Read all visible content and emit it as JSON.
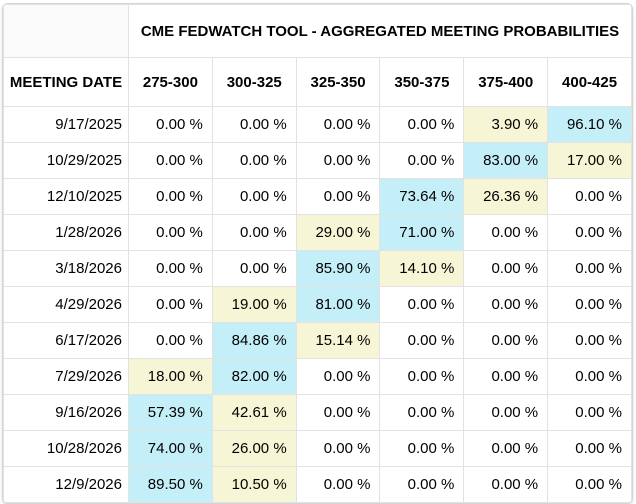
{
  "colors": {
    "highlight_blue": "#c5eff8",
    "highlight_yellow": "#f6f6d6",
    "grid_border": "#e2e2e2",
    "outer_border": "#d4d4d4"
  },
  "chart_data": {
    "type": "table",
    "title": "CME FEDWATCH TOOL - AGGREGATED MEETING PROBABILITIES",
    "date_column_header": "MEETING DATE",
    "rate_columns": [
      "275-300",
      "300-325",
      "325-350",
      "350-375",
      "375-400",
      "400-425"
    ],
    "legend_note_highlights": {
      "blue": "highest probability in row",
      "yellow": "second probability in row"
    },
    "rows": [
      {
        "date": "9/17/2025",
        "values": [
          0.0,
          0.0,
          0.0,
          0.0,
          3.9,
          96.1
        ],
        "cells": [
          "0.00 %",
          "0.00 %",
          "0.00 %",
          "0.00 %",
          "3.90 %",
          "96.10 %"
        ],
        "highlights": [
          "none",
          "none",
          "none",
          "none",
          "yellow",
          "blue"
        ]
      },
      {
        "date": "10/29/2025",
        "values": [
          0.0,
          0.0,
          0.0,
          0.0,
          83.0,
          17.0
        ],
        "cells": [
          "0.00 %",
          "0.00 %",
          "0.00 %",
          "0.00 %",
          "83.00 %",
          "17.00 %"
        ],
        "highlights": [
          "none",
          "none",
          "none",
          "none",
          "blue",
          "yellow"
        ]
      },
      {
        "date": "12/10/2025",
        "values": [
          0.0,
          0.0,
          0.0,
          73.64,
          26.36,
          0.0
        ],
        "cells": [
          "0.00 %",
          "0.00 %",
          "0.00 %",
          "73.64 %",
          "26.36 %",
          "0.00 %"
        ],
        "highlights": [
          "none",
          "none",
          "none",
          "blue",
          "yellow",
          "none"
        ]
      },
      {
        "date": "1/28/2026",
        "values": [
          0.0,
          0.0,
          29.0,
          71.0,
          0.0,
          0.0
        ],
        "cells": [
          "0.00 %",
          "0.00 %",
          "29.00 %",
          "71.00 %",
          "0.00 %",
          "0.00 %"
        ],
        "highlights": [
          "none",
          "none",
          "yellow",
          "blue",
          "none",
          "none"
        ]
      },
      {
        "date": "3/18/2026",
        "values": [
          0.0,
          0.0,
          85.9,
          14.1,
          0.0,
          0.0
        ],
        "cells": [
          "0.00 %",
          "0.00 %",
          "85.90 %",
          "14.10 %",
          "0.00 %",
          "0.00 %"
        ],
        "highlights": [
          "none",
          "none",
          "blue",
          "yellow",
          "none",
          "none"
        ]
      },
      {
        "date": "4/29/2026",
        "values": [
          0.0,
          19.0,
          81.0,
          0.0,
          0.0,
          0.0
        ],
        "cells": [
          "0.00 %",
          "19.00 %",
          "81.00 %",
          "0.00 %",
          "0.00 %",
          "0.00 %"
        ],
        "highlights": [
          "none",
          "yellow",
          "blue",
          "none",
          "none",
          "none"
        ]
      },
      {
        "date": "6/17/2026",
        "values": [
          0.0,
          84.86,
          15.14,
          0.0,
          0.0,
          0.0
        ],
        "cells": [
          "0.00 %",
          "84.86 %",
          "15.14 %",
          "0.00 %",
          "0.00 %",
          "0.00 %"
        ],
        "highlights": [
          "none",
          "blue",
          "yellow",
          "none",
          "none",
          "none"
        ]
      },
      {
        "date": "7/29/2026",
        "values": [
          18.0,
          82.0,
          0.0,
          0.0,
          0.0,
          0.0
        ],
        "cells": [
          "18.00 %",
          "82.00 %",
          "0.00 %",
          "0.00 %",
          "0.00 %",
          "0.00 %"
        ],
        "highlights": [
          "yellow",
          "blue",
          "none",
          "none",
          "none",
          "none"
        ]
      },
      {
        "date": "9/16/2026",
        "values": [
          57.39,
          42.61,
          0.0,
          0.0,
          0.0,
          0.0
        ],
        "cells": [
          "57.39 %",
          "42.61 %",
          "0.00 %",
          "0.00 %",
          "0.00 %",
          "0.00 %"
        ],
        "highlights": [
          "blue",
          "yellow",
          "none",
          "none",
          "none",
          "none"
        ]
      },
      {
        "date": "10/28/2026",
        "values": [
          74.0,
          26.0,
          0.0,
          0.0,
          0.0,
          0.0
        ],
        "cells": [
          "74.00 %",
          "26.00 %",
          "0.00 %",
          "0.00 %",
          "0.00 %",
          "0.00 %"
        ],
        "highlights": [
          "blue",
          "yellow",
          "none",
          "none",
          "none",
          "none"
        ]
      },
      {
        "date": "12/9/2026",
        "values": [
          89.5,
          10.5,
          0.0,
          0.0,
          0.0,
          0.0
        ],
        "cells": [
          "89.50 %",
          "10.50 %",
          "0.00 %",
          "0.00 %",
          "0.00 %",
          "0.00 %"
        ],
        "highlights": [
          "blue",
          "yellow",
          "none",
          "none",
          "none",
          "none"
        ]
      }
    ]
  }
}
